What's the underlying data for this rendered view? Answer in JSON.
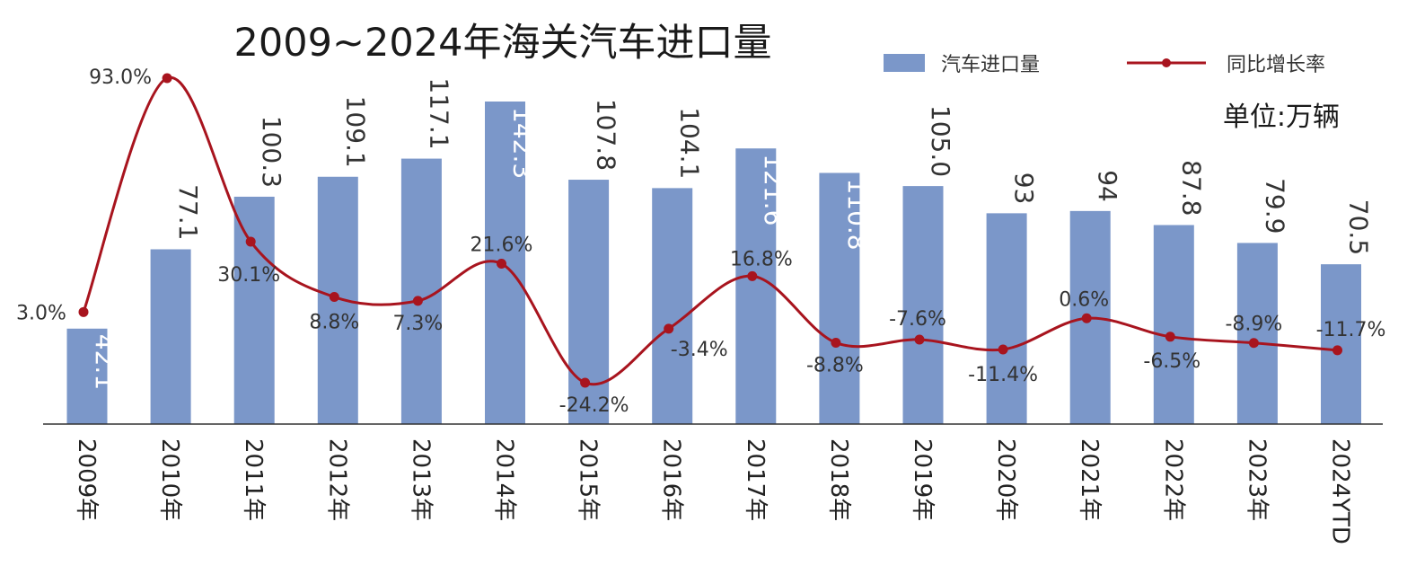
{
  "chart_data": {
    "type": "bar",
    "title": "2009~2024年海关汽车进口量",
    "unit": "单位:万辆",
    "categories": [
      "2009年",
      "2010年",
      "2011年",
      "2012年",
      "2013年",
      "2014年",
      "2015年",
      "2016年",
      "2017年",
      "2018年",
      "2019年",
      "2020年",
      "2021年",
      "2022年",
      "2023年",
      "2024YTD"
    ],
    "value_labels": [
      "42.1",
      "77.1",
      "100.3",
      "109.1",
      "117.1",
      "142.3",
      "107.8",
      "104.1",
      "121.6",
      "110.8",
      "105.0",
      "93",
      "94",
      "87.8",
      "79.9",
      "70.5"
    ],
    "series": [
      {
        "name": "汽车进口量",
        "type": "bar",
        "color": "#7b97c9",
        "values": [
          42.1,
          77.1,
          100.3,
          109.1,
          117.1,
          142.3,
          107.8,
          104.1,
          121.6,
          110.8,
          105.0,
          93,
          94,
          87.8,
          79.9,
          70.5
        ]
      },
      {
        "name": "同比增长率",
        "type": "line",
        "color": "#a8141e",
        "values": [
          3.0,
          93.0,
          30.1,
          8.8,
          7.3,
          21.6,
          -24.2,
          -3.4,
          16.8,
          -8.8,
          -7.6,
          -11.4,
          0.6,
          -6.5,
          -8.9,
          -11.7
        ],
        "labels": [
          "3.0%",
          "93.0%",
          "30.1%",
          "8.8%",
          "7.3%",
          "21.6%",
          "-24.2%",
          "-3.4%",
          "16.8%",
          "-8.8%",
          "-7.6%",
          "-11.4%",
          "0.6%",
          "-6.5%",
          "-8.9%",
          "-11.7%"
        ]
      }
    ],
    "ylim_bar": [
      0,
      142.3
    ],
    "ylim_line": [
      -24.2,
      93.0
    ],
    "legend_position": "top-right",
    "grid": false
  },
  "colors": {
    "bar": "#7b97c9",
    "line": "#a8141e",
    "axis": "#333333"
  }
}
